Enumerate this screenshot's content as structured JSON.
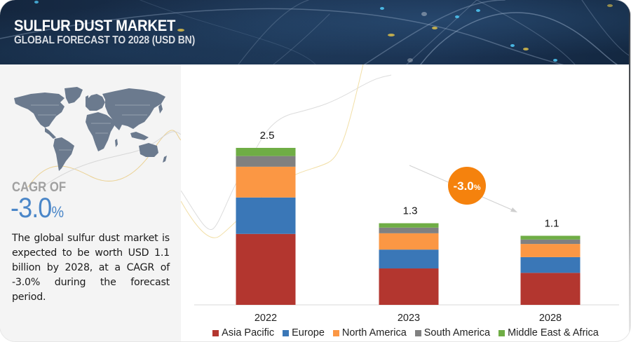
{
  "header": {
    "title": "SULFUR DUST MARKET",
    "subtitle": "GLOBAL FORECAST TO 2028 (USD BN)"
  },
  "left_panel": {
    "cagr_label": "CAGR OF",
    "cagr_value": "-3.0",
    "cagr_unit": "%",
    "summary": "The global sulfur dust market is expected to be worth USD 1.1 billion by 2028, at a CAGR of -3.0% during the forecast period.",
    "map_icon": "world-map-icon"
  },
  "chart_data": {
    "type": "bar",
    "stacked": true,
    "title": "Sulfur Dust Market, Global Forecast to 2028 (USD BN)",
    "xlabel": "",
    "ylabel": "USD BN",
    "categories": [
      "2022",
      "2023",
      "2028"
    ],
    "totals": [
      "2.5",
      "1.3",
      "1.1"
    ],
    "series": [
      {
        "name": "Asia Pacific",
        "color": "#b3362f",
        "values": [
          1.13,
          0.58,
          0.51
        ]
      },
      {
        "name": "Europe",
        "color": "#3a77b7",
        "values": [
          0.58,
          0.3,
          0.25
        ]
      },
      {
        "name": "North America",
        "color": "#fb9744",
        "values": [
          0.49,
          0.26,
          0.21
        ]
      },
      {
        "name": "South America",
        "color": "#808080",
        "values": [
          0.17,
          0.09,
          0.07
        ]
      },
      {
        "name": "Middle East & Africa",
        "color": "#6fad45",
        "values": [
          0.13,
          0.07,
          0.06
        ]
      }
    ],
    "ylim": [
      0,
      2.5
    ],
    "grid": false,
    "legend_position": "bottom-center",
    "annotation": {
      "label": "-3.0",
      "unit": "%",
      "color": "#f5820d",
      "description": "CAGR arrow from 2023 to 2028"
    }
  }
}
